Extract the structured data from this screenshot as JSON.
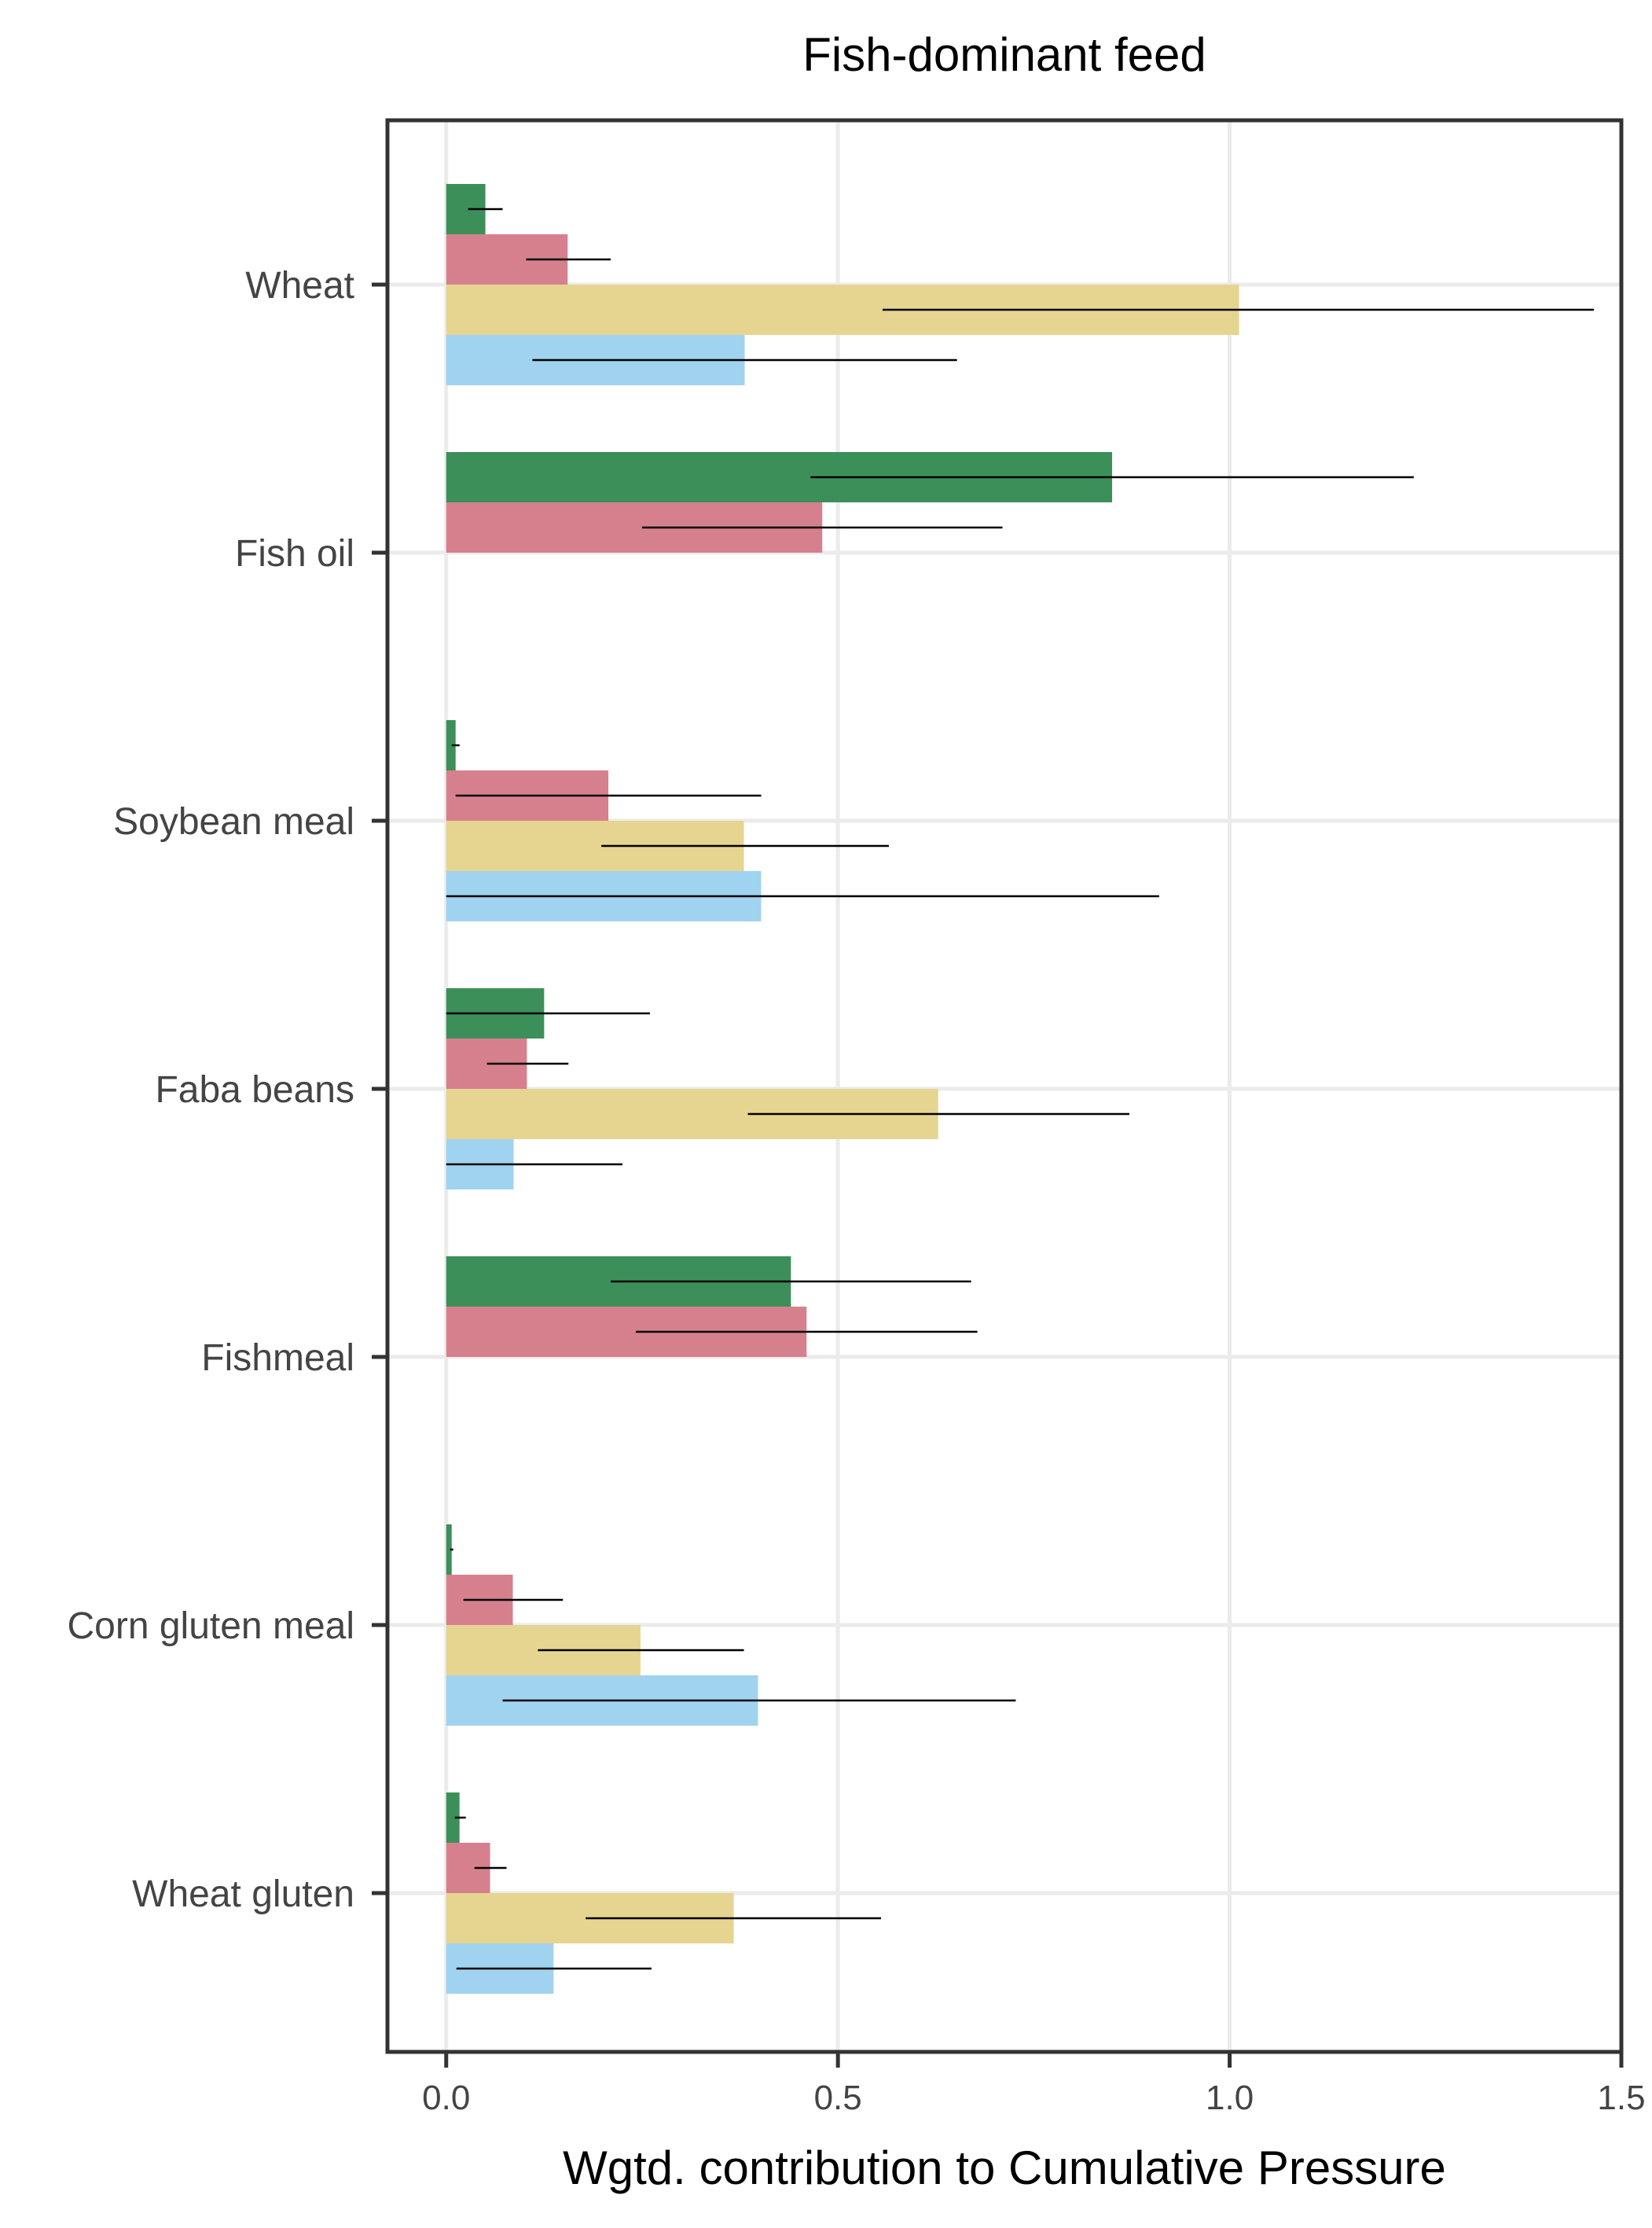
{
  "chart_data": {
    "type": "bar",
    "orientation": "horizontal",
    "title": "Fish-dominant feed",
    "xlabel": "Wgtd. contribution to Cumulative Pressure",
    "ylabel": "",
    "xlim": [
      -0.075,
      1.5
    ],
    "xticks": [
      0,
      0.5,
      1,
      1.5
    ],
    "xtick_labels": [
      "0.0",
      "0.5",
      "1.0",
      "1.5"
    ],
    "grid": true,
    "legend": "none",
    "categories": [
      "Wheat",
      "Fish oil",
      "Soybean meal",
      "Faba beans",
      "Fishmeal",
      "Corn gluten meal",
      "Wheat gluten"
    ],
    "series": [
      {
        "color": "#3d8f5a",
        "values": [
          0.05,
          0.85,
          0.012,
          0.125,
          0.44,
          0.007,
          0.017
        ],
        "error_low": [
          0.028,
          0.465,
          0.007,
          0.0,
          0.21,
          0.005,
          0.011
        ],
        "error_high": [
          0.072,
          1.235,
          0.017,
          0.26,
          0.67,
          0.009,
          0.025
        ]
      },
      {
        "color": "#d6808e",
        "values": [
          0.155,
          0.48,
          0.207,
          0.103,
          0.46,
          0.085,
          0.056
        ],
        "error_low": [
          0.102,
          0.25,
          0.012,
          0.052,
          0.242,
          0.022,
          0.036
        ],
        "error_high": [
          0.21,
          0.71,
          0.402,
          0.156,
          0.678,
          0.149,
          0.077
        ]
      },
      {
        "color": "#e6d590",
        "values": [
          1.012,
          null,
          0.38,
          0.628,
          null,
          0.248,
          0.367
        ],
        "error_low": [
          0.557,
          null,
          0.198,
          0.385,
          null,
          0.117,
          0.178
        ],
        "error_high": [
          1.465,
          null,
          0.565,
          0.872,
          null,
          0.38,
          0.555
        ]
      },
      {
        "color": "#a0d3ef",
        "values": [
          0.381,
          null,
          0.402,
          0.086,
          null,
          0.398,
          0.137
        ],
        "error_low": [
          0.11,
          null,
          0.0,
          0.0,
          null,
          0.072,
          0.013
        ],
        "error_high": [
          0.652,
          null,
          0.91,
          0.225,
          null,
          0.727,
          0.262
        ]
      }
    ]
  }
}
